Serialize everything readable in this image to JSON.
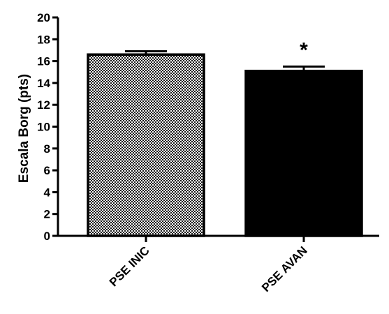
{
  "chart_data": {
    "type": "bar",
    "title": "",
    "xlabel": "",
    "ylabel": "Escala Borg (pts)",
    "ylim": [
      0,
      20
    ],
    "yticks": [
      0,
      2,
      4,
      6,
      8,
      10,
      12,
      14,
      16,
      18,
      20
    ],
    "categories": [
      "PSE INIC",
      "PSE AVAN"
    ],
    "values": [
      16.6,
      15.1
    ],
    "errors": [
      0.3,
      0.4
    ],
    "fills": [
      "pattern-checker",
      "#000000"
    ],
    "annotations": [
      {
        "category": "PSE AVAN",
        "text": "*"
      }
    ],
    "grid": false,
    "legend": "none"
  }
}
